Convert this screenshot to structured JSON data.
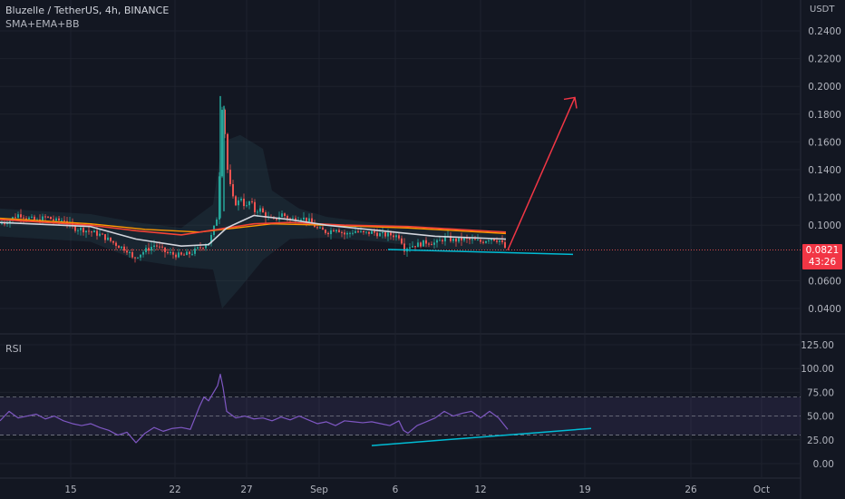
{
  "header": {
    "title": "Bluzelle / TetherUS, 4h, BINANCE",
    "indicators": "SMA+EMA+BB",
    "currency": "USDT"
  },
  "rsi_panel": {
    "label": "RSI"
  },
  "price_badge": {
    "price": "0.0821",
    "countdown": "43:26"
  },
  "colors": {
    "background": "#131722",
    "grid": "#1e222d",
    "text": "#b2b5be",
    "up": "#26a69a",
    "down": "#ef5350",
    "arrow": "#f23645",
    "trendline": "#00bcd4",
    "rsi_line": "#7e57c2",
    "sma_white": "#d1d4dc",
    "ema_red": "#f44336",
    "ema_orange": "#ff9800"
  },
  "chart_data": [
    {
      "type": "candlestick",
      "title": "Bluzelle / TetherUS, 4h, BINANCE",
      "ylabel": "USDT",
      "ylim": [
        0.025,
        0.25
      ],
      "y_ticks": [
        "0.2400",
        "0.2200",
        "0.2000",
        "0.1800",
        "0.1600",
        "0.1400",
        "0.1200",
        "0.1000",
        "0.0600",
        "0.0400"
      ],
      "x_ticks": [
        "15",
        "22",
        "27",
        "Sep",
        "6",
        "12",
        "19",
        "26",
        "Oct"
      ],
      "close_path": [
        [
          0,
          0.101
        ],
        [
          10,
          0.104
        ],
        [
          20,
          0.108
        ],
        [
          30,
          0.105
        ],
        [
          40,
          0.103
        ],
        [
          50,
          0.106
        ],
        [
          60,
          0.103
        ],
        [
          70,
          0.104
        ],
        [
          80,
          0.098
        ],
        [
          90,
          0.097
        ],
        [
          100,
          0.095
        ],
        [
          110,
          0.093
        ],
        [
          120,
          0.089
        ],
        [
          130,
          0.085
        ],
        [
          140,
          0.082
        ],
        [
          145,
          0.076
        ],
        [
          150,
          0.078
        ],
        [
          160,
          0.082
        ],
        [
          170,
          0.086
        ],
        [
          180,
          0.081
        ],
        [
          190,
          0.079
        ],
        [
          200,
          0.078
        ],
        [
          210,
          0.08
        ],
        [
          220,
          0.084
        ],
        [
          230,
          0.088
        ],
        [
          235,
          0.098
        ],
        [
          240,
          0.11
        ],
        [
          243,
          0.19
        ],
        [
          246,
          0.175
        ],
        [
          250,
          0.14
        ],
        [
          255,
          0.12
        ],
        [
          260,
          0.115
        ],
        [
          265,
          0.12
        ],
        [
          270,
          0.112
        ],
        [
          275,
          0.118
        ],
        [
          280,
          0.11
        ],
        [
          285,
          0.112
        ],
        [
          290,
          0.108
        ],
        [
          295,
          0.105
        ],
        [
          300,
          0.103
        ],
        [
          310,
          0.108
        ],
        [
          320,
          0.104
        ],
        [
          330,
          0.106
        ],
        [
          340,
          0.103
        ],
        [
          345,
          0.1
        ],
        [
          350,
          0.097
        ],
        [
          360,
          0.095
        ],
        [
          370,
          0.098
        ],
        [
          380,
          0.093
        ],
        [
          390,
          0.096
        ],
        [
          400,
          0.094
        ],
        [
          410,
          0.095
        ],
        [
          420,
          0.093
        ],
        [
          430,
          0.093
        ],
        [
          440,
          0.092
        ],
        [
          445,
          0.083
        ],
        [
          450,
          0.085
        ],
        [
          460,
          0.086
        ],
        [
          470,
          0.088
        ],
        [
          480,
          0.087
        ],
        [
          490,
          0.091
        ],
        [
          500,
          0.089
        ],
        [
          510,
          0.09
        ],
        [
          520,
          0.089
        ],
        [
          530,
          0.088
        ],
        [
          540,
          0.091
        ],
        [
          550,
          0.089
        ],
        [
          558,
          0.082
        ]
      ],
      "sma_white": [
        [
          0,
          0.102
        ],
        [
          100,
          0.099
        ],
        [
          150,
          0.09
        ],
        [
          200,
          0.085
        ],
        [
          230,
          0.086
        ],
        [
          250,
          0.098
        ],
        [
          280,
          0.107
        ],
        [
          320,
          0.104
        ],
        [
          360,
          0.1
        ],
        [
          420,
          0.096
        ],
        [
          480,
          0.092
        ],
        [
          558,
          0.09
        ]
      ],
      "ema_red": [
        [
          0,
          0.104
        ],
        [
          100,
          0.1
        ],
        [
          150,
          0.096
        ],
        [
          200,
          0.093
        ],
        [
          240,
          0.097
        ],
        [
          280,
          0.101
        ],
        [
          320,
          0.102
        ],
        [
          380,
          0.1
        ],
        [
          450,
          0.099
        ],
        [
          558,
          0.095
        ]
      ],
      "ema_orange": [
        [
          0,
          0.105
        ],
        [
          100,
          0.101
        ],
        [
          160,
          0.097
        ],
        [
          220,
          0.095
        ],
        [
          260,
          0.098
        ],
        [
          300,
          0.101
        ],
        [
          360,
          0.1
        ],
        [
          450,
          0.098
        ],
        [
          558,
          0.094
        ]
      ],
      "bb_upper": [
        [
          0,
          0.112
        ],
        [
          100,
          0.108
        ],
        [
          150,
          0.102
        ],
        [
          200,
          0.098
        ],
        [
          235,
          0.115
        ],
        [
          245,
          0.16
        ],
        [
          265,
          0.165
        ],
        [
          290,
          0.155
        ],
        [
          300,
          0.125
        ],
        [
          330,
          0.112
        ],
        [
          360,
          0.106
        ],
        [
          420,
          0.101
        ],
        [
          480,
          0.097
        ],
        [
          558,
          0.096
        ]
      ],
      "bb_lower": [
        [
          0,
          0.092
        ],
        [
          100,
          0.088
        ],
        [
          150,
          0.075
        ],
        [
          200,
          0.07
        ],
        [
          235,
          0.068
        ],
        [
          245,
          0.04
        ],
        [
          265,
          0.055
        ],
        [
          290,
          0.075
        ],
        [
          320,
          0.09
        ],
        [
          360,
          0.091
        ],
        [
          420,
          0.088
        ],
        [
          480,
          0.083
        ],
        [
          558,
          0.081
        ]
      ],
      "projection_arrow": [
        [
          560,
          0.082
        ],
        [
          634,
          0.192
        ]
      ],
      "support_line": [
        [
          428,
          0.0825
        ],
        [
          632,
          0.079
        ]
      ],
      "last_price": 0.0821
    },
    {
      "type": "line",
      "title": "RSI",
      "ylim": [
        -10,
        130
      ],
      "y_ticks": [
        "125.00",
        "100.00",
        "75.00",
        "50.00",
        "25.00",
        "0.00"
      ],
      "bands": [
        70,
        50,
        30
      ],
      "values": [
        [
          0,
          45
        ],
        [
          10,
          55
        ],
        [
          20,
          48
        ],
        [
          30,
          50
        ],
        [
          40,
          52
        ],
        [
          50,
          47
        ],
        [
          60,
          50
        ],
        [
          70,
          45
        ],
        [
          80,
          42
        ],
        [
          90,
          40
        ],
        [
          100,
          42
        ],
        [
          110,
          38
        ],
        [
          120,
          35
        ],
        [
          130,
          30
        ],
        [
          140,
          33
        ],
        [
          150,
          22
        ],
        [
          160,
          32
        ],
        [
          170,
          38
        ],
        [
          180,
          34
        ],
        [
          190,
          37
        ],
        [
          200,
          38
        ],
        [
          210,
          36
        ],
        [
          220,
          60
        ],
        [
          225,
          70
        ],
        [
          230,
          66
        ],
        [
          240,
          82
        ],
        [
          243,
          94
        ],
        [
          246,
          80
        ],
        [
          250,
          55
        ],
        [
          260,
          48
        ],
        [
          270,
          50
        ],
        [
          280,
          47
        ],
        [
          290,
          48
        ],
        [
          300,
          45
        ],
        [
          310,
          49
        ],
        [
          320,
          46
        ],
        [
          330,
          50
        ],
        [
          340,
          46
        ],
        [
          350,
          42
        ],
        [
          360,
          44
        ],
        [
          370,
          40
        ],
        [
          380,
          45
        ],
        [
          390,
          44
        ],
        [
          400,
          43
        ],
        [
          410,
          44
        ],
        [
          420,
          42
        ],
        [
          430,
          40
        ],
        [
          440,
          45
        ],
        [
          445,
          35
        ],
        [
          450,
          32
        ],
        [
          460,
          40
        ],
        [
          470,
          44
        ],
        [
          480,
          48
        ],
        [
          490,
          55
        ],
        [
          500,
          50
        ],
        [
          510,
          53
        ],
        [
          520,
          55
        ],
        [
          530,
          48
        ],
        [
          540,
          55
        ],
        [
          550,
          48
        ],
        [
          560,
          36
        ]
      ],
      "trendline": [
        [
          410,
          19
        ],
        [
          652,
          37
        ]
      ]
    }
  ]
}
